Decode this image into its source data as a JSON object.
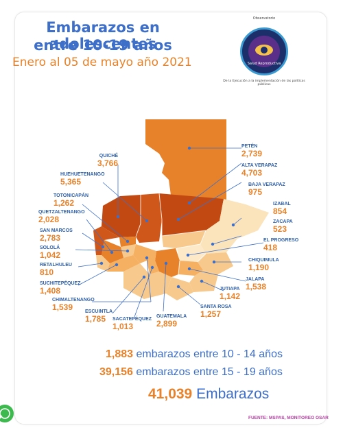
{
  "title": {
    "line1": "Embarazos en adolescentes",
    "line2": "entre 10-19 años",
    "line3": "Enero al 05 de mayo año 2021"
  },
  "logo": {
    "top_text": "Observatorio",
    "center_text": "Salud Reproductiva",
    "bottom_text": "De la Ejecución a la implementación de las políticas públicas"
  },
  "departments": [
    {
      "name": "PETÉN",
      "value": "2,739"
    },
    {
      "name": "QUICHÉ",
      "value": "3,766"
    },
    {
      "name": "ALTA VERAPAZ",
      "value": "4,703"
    },
    {
      "name": "HUEHUETENANGO",
      "value": "5,365"
    },
    {
      "name": "BAJA VERAPAZ",
      "value": "975"
    },
    {
      "name": "TOTONICAPÁN",
      "value": "1,262"
    },
    {
      "name": "IZABAL",
      "value": "854"
    },
    {
      "name": "QUETZALTENANGO",
      "value": "2,028"
    },
    {
      "name": "ZACAPA",
      "value": "523"
    },
    {
      "name": "SAN MARCOS",
      "value": "2,783"
    },
    {
      "name": "EL PROGRESO",
      "value": "418"
    },
    {
      "name": "SOLOLÁ",
      "value": "1,042"
    },
    {
      "name": "CHIQUIMULA",
      "value": "1,190"
    },
    {
      "name": "RETALHULEU",
      "value": "810"
    },
    {
      "name": "JALAPA",
      "value": "1,538"
    },
    {
      "name": "SUCHITEPÉQUEZ",
      "value": "1,408"
    },
    {
      "name": "JUTIAPA",
      "value": "1,142"
    },
    {
      "name": "CHIMALTENANGO",
      "value": "1,539"
    },
    {
      "name": "SANTA ROSA",
      "value": "1,257"
    },
    {
      "name": "ESCUINTLA",
      "value": "1,785"
    },
    {
      "name": "SACATEPÉQUEZ",
      "value": "1,013"
    },
    {
      "name": "GUATEMALA",
      "value": "2,899"
    }
  ],
  "summary": {
    "line1_value": "1,883",
    "line1_text": "embarazos entre 10 - 14 años",
    "line2_value": "39,156",
    "line2_text": "embarazos entre 15 - 19 años",
    "total_value": "41,039",
    "total_text": "Embarazos"
  },
  "source": "FUENTE: MSPAS, MONITOREO OSAR",
  "colors": {
    "title_blue": "#3d6fc9",
    "accent_orange": "#e8822a",
    "dark_orange": "#c24a12",
    "light_orange": "#f7c98c",
    "pale_yellow": "#fbe3bb",
    "source_magenta": "#b23aa0"
  }
}
